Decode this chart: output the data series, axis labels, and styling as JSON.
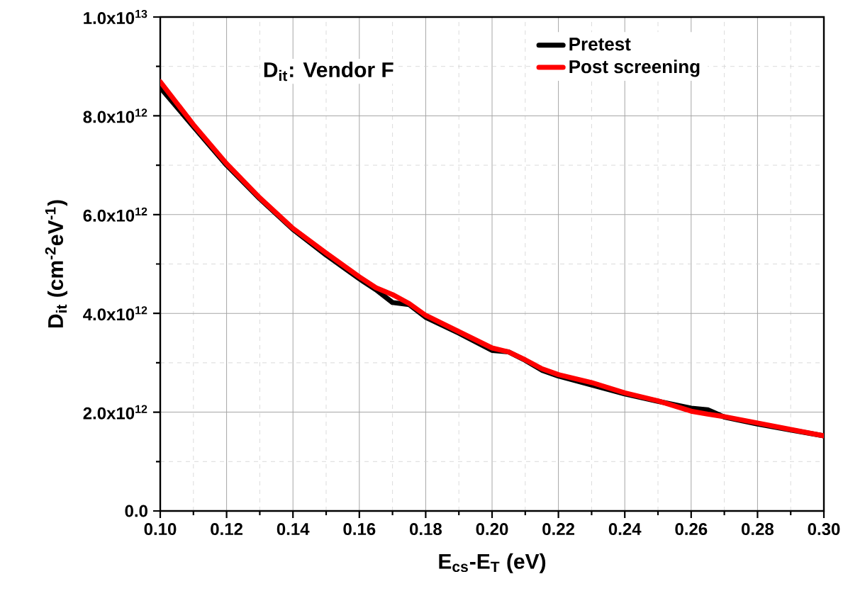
{
  "chart_data": {
    "type": "line",
    "xlabel": "E$_{cs}$-E$_{T}$ (eV)",
    "ylabel": "D$_{it}$ (cm$^{-2}$eV$^{-1}$)",
    "annotations": [
      "D$_{it}$: Vendor F"
    ],
    "xlim": [
      0.1,
      0.3
    ],
    "ylim": [
      0,
      10000000000000.0
    ],
    "xticks": [
      {
        "value": 0.1,
        "label": "0.10"
      },
      {
        "value": 0.12,
        "label": "0.12"
      },
      {
        "value": 0.14,
        "label": "0.14"
      },
      {
        "value": 0.16,
        "label": "0.16"
      },
      {
        "value": 0.18,
        "label": "0.18"
      },
      {
        "value": 0.2,
        "label": "0.20"
      },
      {
        "value": 0.22,
        "label": "0.22"
      },
      {
        "value": 0.24,
        "label": "0.24"
      },
      {
        "value": 0.26,
        "label": "0.26"
      },
      {
        "value": 0.28,
        "label": "0.28"
      },
      {
        "value": 0.3,
        "label": "0.30"
      }
    ],
    "yticks": [
      {
        "value": 0,
        "label": "0.0"
      },
      {
        "value": 2000000000000.0,
        "label": "2.0x10$^{12}$"
      },
      {
        "value": 4000000000000.0,
        "label": "4.0x10$^{12}$"
      },
      {
        "value": 6000000000000.0,
        "label": "6.0x10$^{12}$"
      },
      {
        "value": 8000000000000.0,
        "label": "8.0x10$^{12}$"
      },
      {
        "value": 10000000000000.0,
        "label": "1.0x10$^{13}$"
      }
    ],
    "grid": true,
    "legend": "top right",
    "marker": "none",
    "line_style": "solid",
    "x": [
      0.1,
      0.11,
      0.12,
      0.13,
      0.14,
      0.15,
      0.16,
      0.165,
      0.17,
      0.175,
      0.18,
      0.19,
      0.2,
      0.205,
      0.21,
      0.215,
      0.22,
      0.23,
      0.24,
      0.25,
      0.26,
      0.265,
      0.27,
      0.28,
      0.29,
      0.3
    ],
    "series": [
      {
        "name": "Pretest",
        "color": "#000000",
        "values": [
          8570000000000.0,
          7780000000000.0,
          7000000000000.0,
          6320000000000.0,
          5700000000000.0,
          5180000000000.0,
          4700000000000.0,
          4480000000000.0,
          4220000000000.0,
          4180000000000.0,
          3920000000000.0,
          3600000000000.0,
          3250000000000.0,
          3220000000000.0,
          3050000000000.0,
          2850000000000.0,
          2730000000000.0,
          2550000000000.0,
          2370000000000.0,
          2220000000000.0,
          2080000000000.0,
          2050000000000.0,
          1900000000000.0,
          1760000000000.0,
          1640000000000.0,
          1520000000000.0
        ]
      },
      {
        "name": "Post screening",
        "color": "#ff0000",
        "values": [
          8690000000000.0,
          7820000000000.0,
          7030000000000.0,
          6340000000000.0,
          5720000000000.0,
          5220000000000.0,
          4740000000000.0,
          4520000000000.0,
          4380000000000.0,
          4200000000000.0,
          3960000000000.0,
          3630000000000.0,
          3300000000000.0,
          3220000000000.0,
          3060000000000.0,
          2880000000000.0,
          2760000000000.0,
          2600000000000.0,
          2390000000000.0,
          2230000000000.0,
          2020000000000.0,
          1960000000000.0,
          1910000000000.0,
          1780000000000.0,
          1650000000000.0,
          1520000000000.0
        ]
      }
    ]
  }
}
